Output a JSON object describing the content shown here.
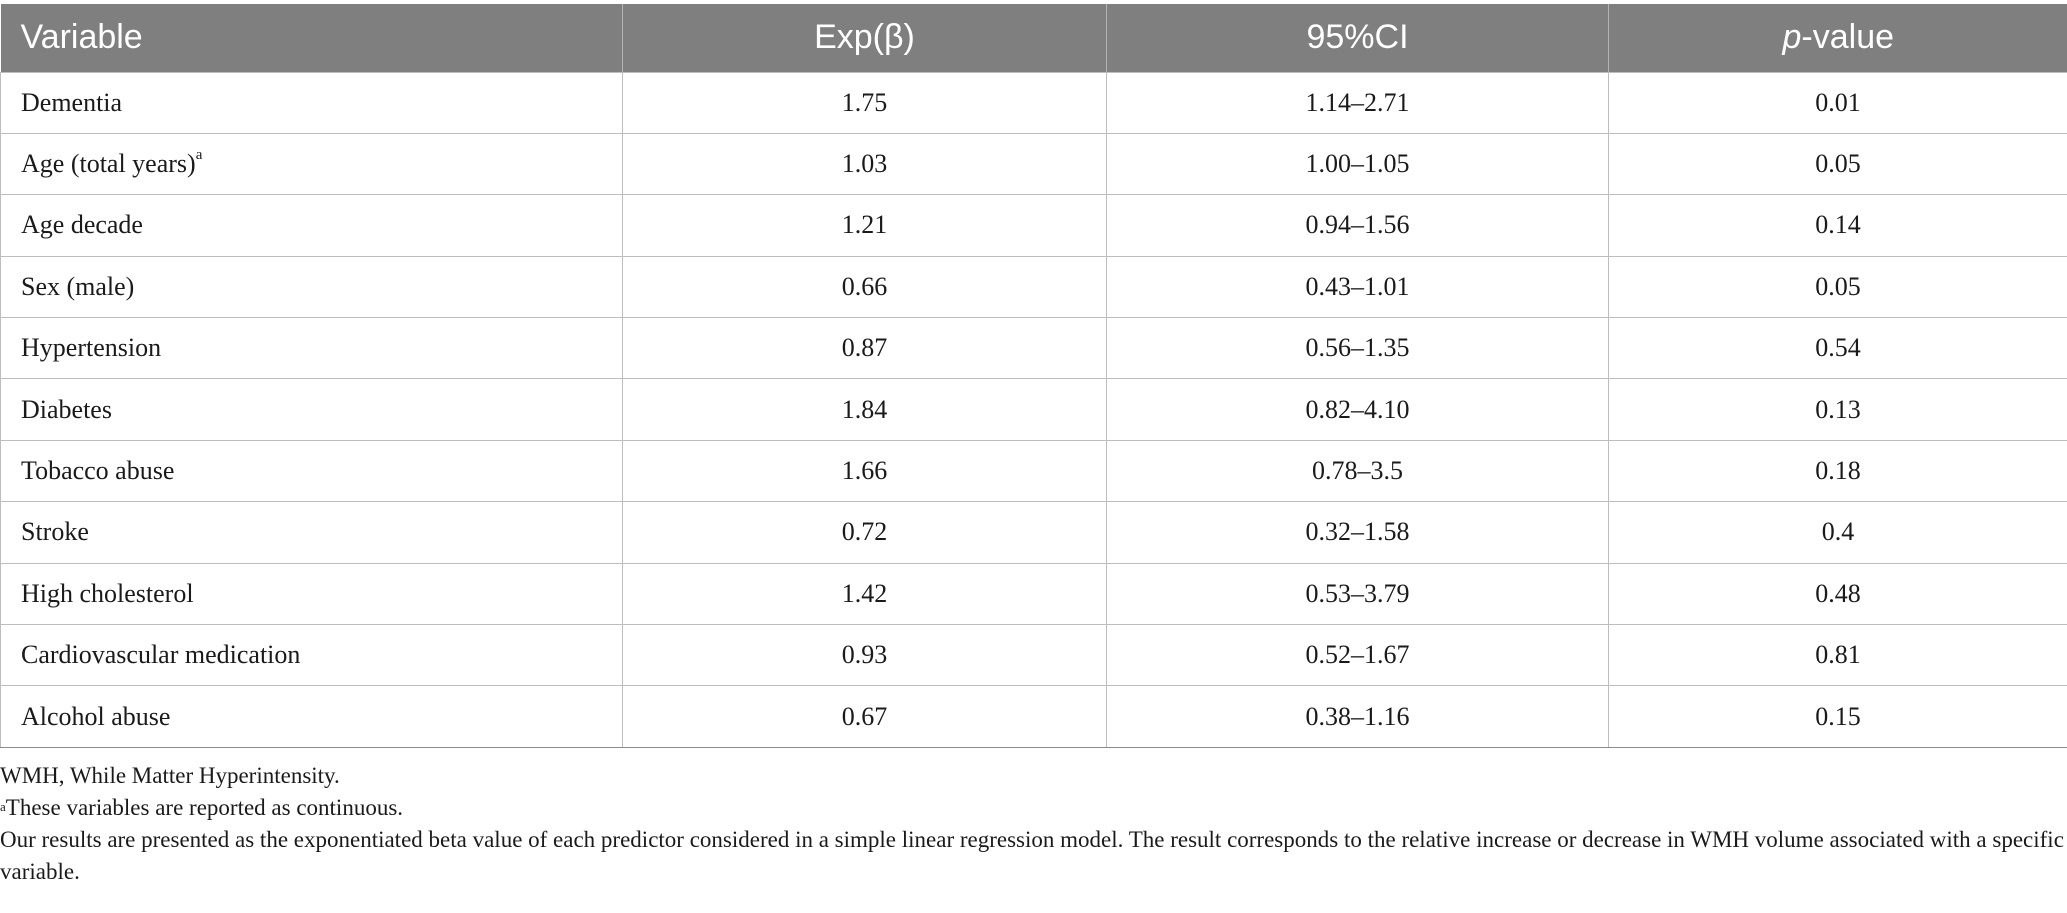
{
  "table": {
    "headers": {
      "variable": "Variable",
      "exp_beta": "Exp(β)",
      "ci": "95%CI",
      "p_italic": "p",
      "p_rest": "-value"
    },
    "rows": [
      {
        "variable": "Dementia",
        "sup": "",
        "exp_beta": "1.75",
        "ci": "1.14–2.71",
        "p": "0.01"
      },
      {
        "variable": "Age (total years)",
        "sup": "a",
        "exp_beta": "1.03",
        "ci": "1.00–1.05",
        "p": "0.05"
      },
      {
        "variable": "Age decade",
        "sup": "",
        "exp_beta": "1.21",
        "ci": "0.94–1.56",
        "p": "0.14"
      },
      {
        "variable": "Sex (male)",
        "sup": "",
        "exp_beta": "0.66",
        "ci": "0.43–1.01",
        "p": "0.05"
      },
      {
        "variable": "Hypertension",
        "sup": "",
        "exp_beta": "0.87",
        "ci": "0.56–1.35",
        "p": "0.54"
      },
      {
        "variable": "Diabetes",
        "sup": "",
        "exp_beta": "1.84",
        "ci": "0.82–4.10",
        "p": "0.13"
      },
      {
        "variable": "Tobacco abuse",
        "sup": "",
        "exp_beta": "1.66",
        "ci": "0.78–3.5",
        "p": "0.18"
      },
      {
        "variable": "Stroke",
        "sup": "",
        "exp_beta": "0.72",
        "ci": "0.32–1.58",
        "p": "0.4"
      },
      {
        "variable": "High cholesterol",
        "sup": "",
        "exp_beta": "1.42",
        "ci": "0.53–3.79",
        "p": "0.48"
      },
      {
        "variable": "Cardiovascular medication",
        "sup": "",
        "exp_beta": "0.93",
        "ci": "0.52–1.67",
        "p": "0.81"
      },
      {
        "variable": "Alcohol abuse",
        "sup": "",
        "exp_beta": "0.67",
        "ci": "0.38–1.16",
        "p": "0.15"
      }
    ]
  },
  "footnotes": {
    "abbreviation": "WMH, While Matter Hyperintensity.",
    "a_marker": "a",
    "a_text": "These variables are reported as continuous.",
    "description": "Our results are presented as the exponentiated beta value of each predictor considered in a simple linear regression model. The result corresponds to the relative increase or decrease in WMH volume associated with a specific variable."
  },
  "colors": {
    "header_background": "#7f7f7f",
    "header_text": "#ffffff",
    "grid_lines": "#bdbdbd"
  }
}
